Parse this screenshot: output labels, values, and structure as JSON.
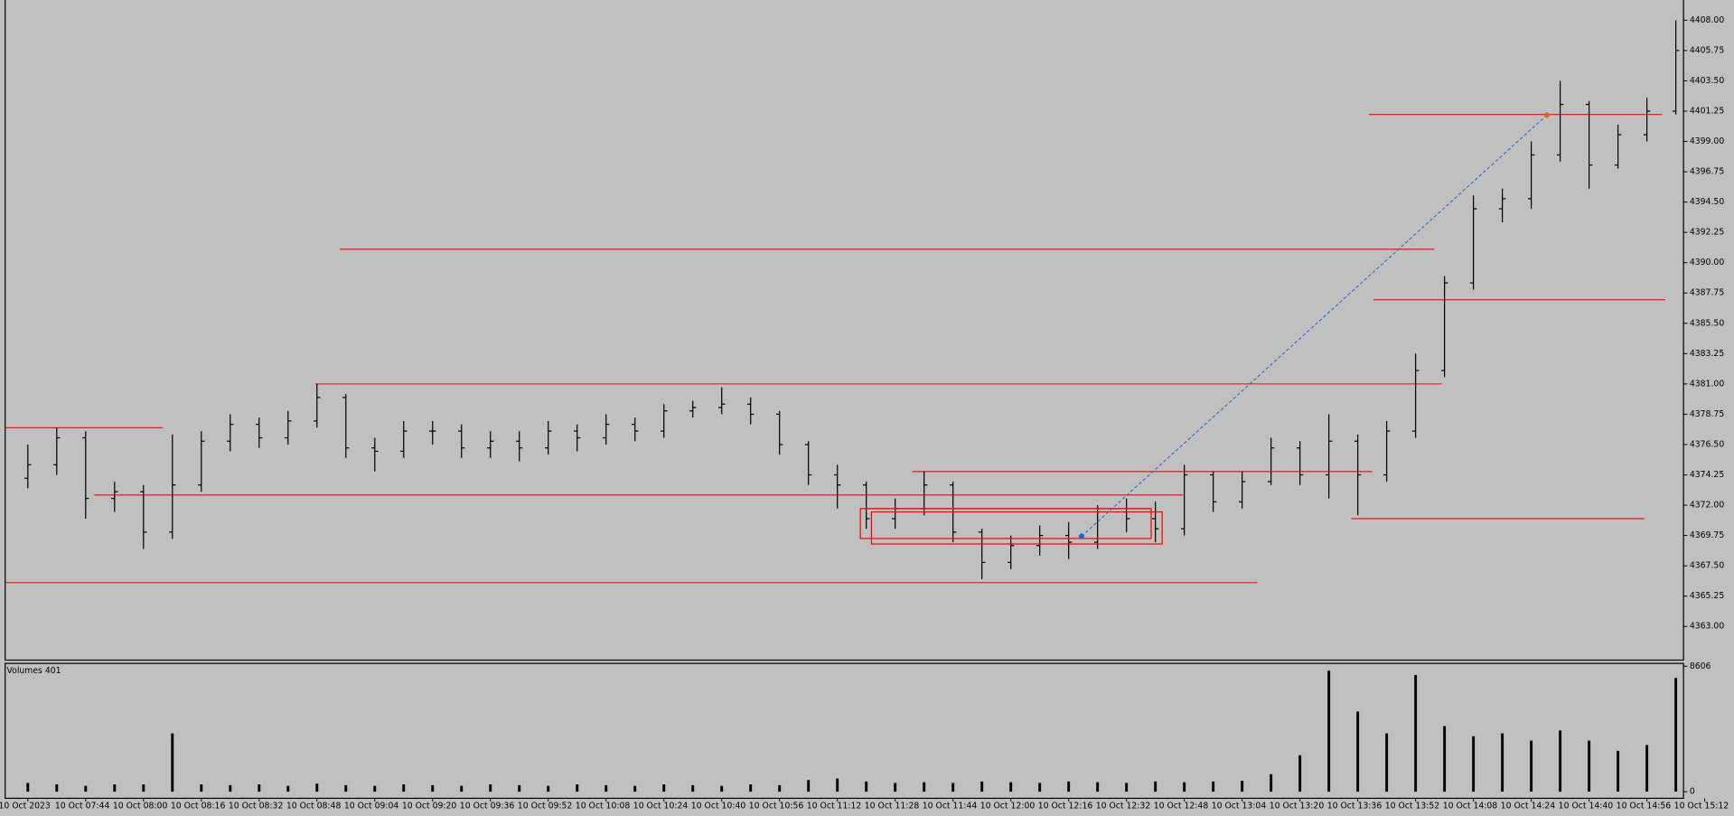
{
  "chart_data": {
    "type": "ohlc",
    "color": "#000000",
    "open": [
      4374,
      4375,
      4377,
      4372.5,
      4373,
      4370,
      4373.5,
      4376.75,
      4378,
      4377,
      4378.25,
      4380,
      4376.25,
      4376,
      4377.5,
      4377.5,
      4376.25,
      4376.75,
      4376.25,
      4377.5,
      4377,
      4378,
      4377.5,
      4379,
      4379.25,
      4379.5,
      4378.75,
      4376.5,
      4374.25,
      4373.5,
      4371,
      4371.75,
      4373.5,
      4370,
      4367.75,
      4369,
      4369.75,
      4369.25,
      4371.5,
      4371,
      4370.25,
      4374.25,
      4372.25,
      4373.75,
      4376.25,
      4374.25,
      4376.75,
      4374.25,
      4377.5,
      4382,
      4388.5,
      4394,
      4394.75,
      4398,
      4401.75,
      4397.25,
      4399.5,
      4401.25
    ],
    "high": [
      4376.5,
      4377.75,
      4377.5,
      4373.75,
      4373.5,
      4377.25,
      4377.5,
      4378.75,
      4378.5,
      4379,
      4381,
      4380.25,
      4377,
      4378.25,
      4378.25,
      4378,
      4377.5,
      4377.5,
      4378.25,
      4378,
      4378.75,
      4378.5,
      4379.5,
      4379.75,
      4380.75,
      4380,
      4379,
      4376.75,
      4375,
      4373.75,
      4372.5,
      4374.5,
      4373.75,
      4370.25,
      4369.75,
      4370.5,
      4370.75,
      4372,
      4372.5,
      4372.25,
      4375,
      4374.5,
      4374.5,
      4377,
      4376.75,
      4378.75,
      4377.25,
      4378.25,
      4383.25,
      4389,
      4395,
      4395.5,
      4399,
      4403.5,
      4402,
      4400.25,
      4402.25,
      4408
    ],
    "low": [
      4373.25,
      4374.25,
      4371,
      4371.5,
      4368.75,
      4369.5,
      4373,
      4376,
      4376.25,
      4376.5,
      4377.75,
      4375.5,
      4374.5,
      4375.5,
      4376.5,
      4375.5,
      4375.5,
      4375.25,
      4375.75,
      4376,
      4376.5,
      4376.75,
      4377,
      4378.5,
      4378.75,
      4378,
      4375.75,
      4373.5,
      4371.75,
      4370.25,
      4370.25,
      4371.25,
      4369.25,
      4366.5,
      4367.25,
      4368.25,
      4368,
      4368.75,
      4370,
      4369.25,
      4369.75,
      4371.5,
      4371.75,
      4373.5,
      4373.5,
      4372.5,
      4371.25,
      4373.75,
      4377,
      4381.5,
      4388,
      4393,
      4394,
      4397.5,
      4395.5,
      4397,
      4399,
      4401
    ],
    "close": [
      4375,
      4377,
      4372.5,
      4373,
      4370,
      4373.5,
      4376.75,
      4378,
      4377,
      4378.25,
      4380,
      4376.25,
      4376,
      4377.5,
      4377.5,
      4376.25,
      4376.75,
      4376.25,
      4377.5,
      4377,
      4378,
      4377.5,
      4379,
      4379.25,
      4379.5,
      4378.75,
      4376.5,
      4374.25,
      4373.5,
      4371,
      4371.75,
      4373.5,
      4370,
      4367.75,
      4369,
      4369.75,
      4369.25,
      4371.5,
      4371,
      4370.25,
      4374.25,
      4372.25,
      4373.75,
      4376.25,
      4374.25,
      4376.75,
      4374.25,
      4377.5,
      4382,
      4388.5,
      4394,
      4394.75,
      4398,
      4401.75,
      4397.25,
      4399.5,
      4401.25,
      4405.75
    ],
    "ylim": [
      4360.5,
      4409.5
    ],
    "yticks": [
      {
        "value": 4408,
        "label": "4408.00"
      },
      {
        "value": 4405.75,
        "label": "4405.75"
      },
      {
        "value": 4403.5,
        "label": "4403.50"
      },
      {
        "value": 4401.25,
        "label": "4401.25"
      },
      {
        "value": 4399,
        "label": "4399.00"
      },
      {
        "value": 4396.75,
        "label": "4396.75"
      },
      {
        "value": 4394.5,
        "label": "4394.50"
      },
      {
        "value": 4392.25,
        "label": "4392.25"
      },
      {
        "value": 4390,
        "label": "4390.00"
      },
      {
        "value": 4387.75,
        "label": "4387.75"
      },
      {
        "value": 4385.5,
        "label": "4385.50"
      },
      {
        "value": 4383.25,
        "label": "4383.25"
      },
      {
        "value": 4381,
        "label": "4381.00"
      },
      {
        "value": 4378.75,
        "label": "4378.75"
      },
      {
        "value": 4376.5,
        "label": "4376.50"
      },
      {
        "value": 4374.25,
        "label": "4374.25"
      },
      {
        "value": 4372,
        "label": "4372.00"
      },
      {
        "value": 4369.75,
        "label": "4369.75"
      },
      {
        "value": 4367.5,
        "label": "4367.50"
      },
      {
        "value": 4365.25,
        "label": "4365.25"
      },
      {
        "value": 4363,
        "label": "4363.00"
      }
    ],
    "xticks": [
      "10 Oct 2023",
      "10 Oct 07:44",
      "10 Oct 08:00",
      "10 Oct 08:16",
      "10 Oct 08:32",
      "10 Oct 08:48",
      "10 Oct 09:04",
      "10 Oct 09:20",
      "10 Oct 09:36",
      "10 Oct 09:52",
      "10 Oct 10:08",
      "10 Oct 10:24",
      "10 Oct 10:40",
      "10 Oct 10:56",
      "10 Oct 11:12",
      "10 Oct 11:28",
      "10 Oct 11:44",
      "10 Oct 12:00",
      "10 Oct 12:16",
      "10 Oct 12:32",
      "10 Oct 12:48",
      "10 Oct 13:04",
      "10 Oct 13:20",
      "10 Oct 13:36",
      "10 Oct 13:52",
      "10 Oct 14:08",
      "10 Oct 14:24",
      "10 Oct 14:40",
      "10 Oct 14:56",
      "10 Oct 15:12"
    ],
    "levels": [
      4377.75,
      4372.75,
      4366.25,
      4391,
      4381,
      4387.25,
      4401,
      4374.5,
      4371,
      4371.75
    ],
    "level_color": "#ff0000",
    "volume": {
      "label": "Volumes 401",
      "color": "#000000",
      "values": [
        600,
        500,
        400,
        500,
        500,
        4000,
        500,
        450,
        500,
        400,
        550,
        450,
        400,
        500,
        450,
        400,
        500,
        450,
        400,
        500,
        450,
        400,
        500,
        450,
        400,
        500,
        450,
        800,
        900,
        700,
        600,
        650,
        600,
        700,
        650,
        600,
        700,
        650,
        600,
        700,
        650,
        700,
        750,
        1200,
        2500,
        8300,
        5500,
        4000,
        8000,
        4500,
        3800,
        4000,
        3500,
        4200,
        3500,
        2800,
        3200,
        7800
      ],
      "ylim": [
        0,
        8800
      ],
      "yticks": [
        8606,
        0
      ]
    }
  }
}
